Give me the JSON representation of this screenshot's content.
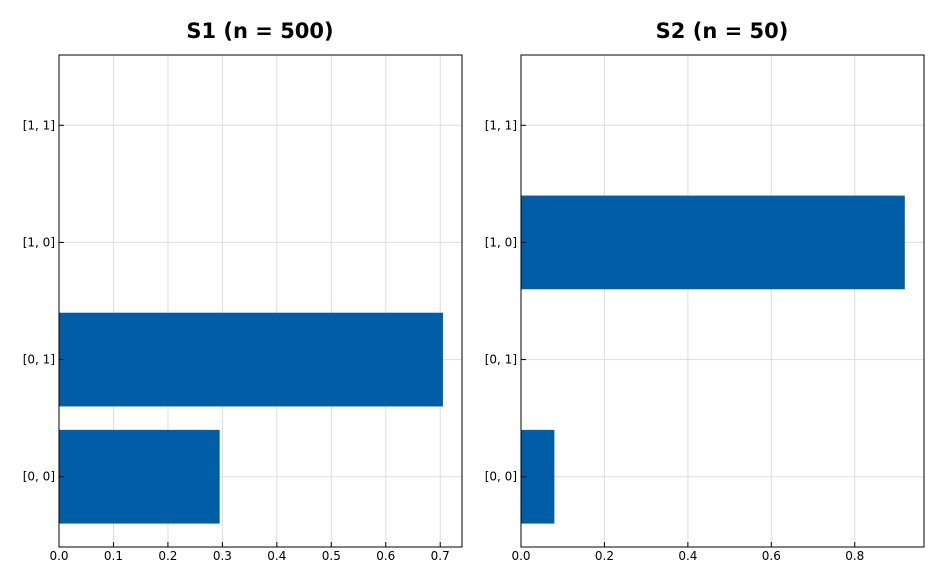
{
  "colors": {
    "bar": "#005ea6",
    "grid": "#dddddd",
    "axis": "#000000"
  },
  "chart_data": [
    {
      "type": "bar",
      "orientation": "horizontal",
      "title": "S1 (n = 500)",
      "categories": [
        "[0, 0]",
        "[0, 1]",
        "[1, 0]",
        "[1, 1]"
      ],
      "values": [
        0.295,
        0.705,
        0.0,
        0.0
      ],
      "xlabel": "",
      "ylabel": "",
      "xlim": [
        0,
        0.74
      ],
      "xticks": [
        0.0,
        0.1,
        0.2,
        0.3,
        0.4,
        0.5,
        0.6,
        0.7
      ],
      "xtick_labels": [
        "0.0",
        "0.1",
        "0.2",
        "0.3",
        "0.4",
        "0.5",
        "0.6",
        "0.7"
      ],
      "grid": true,
      "legend": "none"
    },
    {
      "type": "bar",
      "orientation": "horizontal",
      "title": "S2 (n = 50)",
      "categories": [
        "[0, 0]",
        "[0, 1]",
        "[1, 0]",
        "[1, 1]"
      ],
      "values": [
        0.08,
        0.0,
        0.92,
        0.0
      ],
      "xlabel": "",
      "ylabel": "",
      "xlim": [
        0,
        0.966
      ],
      "xticks": [
        0.0,
        0.2,
        0.4,
        0.6,
        0.8
      ],
      "xtick_labels": [
        "0.0",
        "0.2",
        "0.4",
        "0.6",
        "0.8"
      ],
      "grid": true,
      "legend": "none"
    }
  ]
}
